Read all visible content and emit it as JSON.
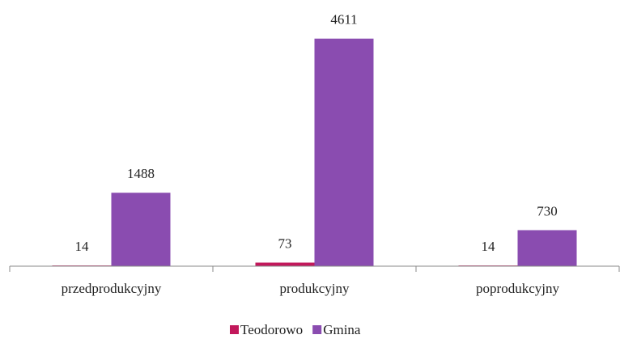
{
  "chart_data": {
    "type": "bar",
    "categories": [
      "przedprodukcyjny",
      "produkcyjny",
      "poprodukcyjny"
    ],
    "series": [
      {
        "name": "Teodorowo",
        "color": "#c2185b",
        "values": [
          14,
          73,
          14
        ]
      },
      {
        "name": "Gmina",
        "color": "#8a4cb0",
        "values": [
          1488,
          4611,
          730
        ]
      }
    ],
    "ylim": [
      0,
      5000
    ]
  }
}
